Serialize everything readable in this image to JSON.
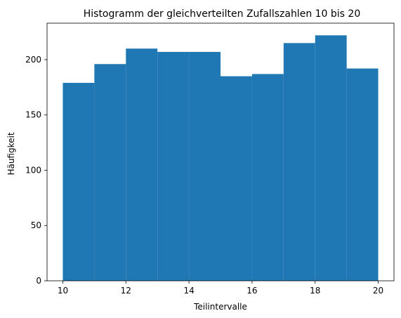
{
  "chart_data": {
    "type": "bar",
    "title": "Histogramm der gleichverteilten Zufallszahlen 10 bis 20",
    "xlabel": "Teilintervalle",
    "ylabel": "Häufigkeit",
    "bin_edges": [
      10,
      11,
      12,
      13,
      14,
      15,
      16,
      17,
      18,
      19,
      20
    ],
    "values": [
      179,
      196,
      210,
      207,
      207,
      185,
      187,
      215,
      222,
      192
    ],
    "xlim": [
      9.5,
      20.5
    ],
    "ylim": [
      0,
      233
    ],
    "xticks": [
      10,
      12,
      14,
      16,
      18,
      20
    ],
    "yticks": [
      0,
      50,
      100,
      150,
      200
    ],
    "bar_color": "#1f77b4",
    "grid": false,
    "legend": "none"
  }
}
